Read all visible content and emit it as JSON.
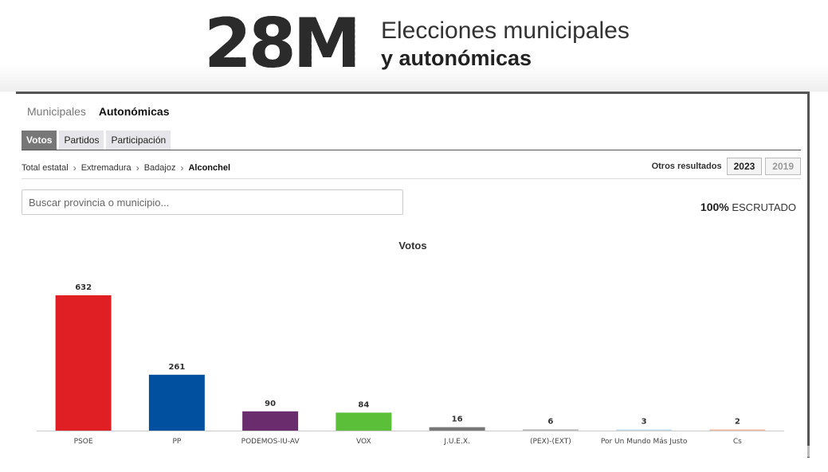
{
  "header": {
    "logo_mark": "28M",
    "logo_line1": "Elecciones municipales",
    "logo_line2": "y autonómicas"
  },
  "top_tabs": [
    {
      "label": "Municipales",
      "active": false
    },
    {
      "label": "Autonómicas",
      "active": true
    }
  ],
  "sub_tabs": [
    {
      "label": "Votos",
      "active": true
    },
    {
      "label": "Partidos",
      "active": false
    },
    {
      "label": "Participación",
      "active": false
    }
  ],
  "breadcrumb": [
    "Total estatal",
    "Extremadura",
    "Badajoz",
    "Alconchel"
  ],
  "other_results": {
    "label": "Otros resultados",
    "years": [
      {
        "label": "2023",
        "active": true
      },
      {
        "label": "2019",
        "active": false
      }
    ]
  },
  "search": {
    "placeholder": "Buscar provincia o municipio..."
  },
  "scrutiny": {
    "percent": "100%",
    "label": "ESCRUTADO"
  },
  "chart_data": {
    "type": "bar",
    "title": "Votos",
    "categories": [
      "PSOE",
      "PP",
      "PODEMOS-IU-AV",
      "VOX",
      "J.U.E.X.",
      "(PEX)-(EXT)",
      "Por Un Mundo Más Justo",
      "Cs"
    ],
    "values": [
      632,
      261,
      90,
      84,
      16,
      6,
      3,
      2
    ],
    "colors": [
      "#e01f25",
      "#0050a0",
      "#6b2c6e",
      "#5bbf3a",
      "#777777",
      "#b9b9b9",
      "#c5dcef",
      "#f5b8a0"
    ],
    "xlabel": "",
    "ylabel": "",
    "grid": false
  },
  "colors": {
    "accent_tab": "#777777",
    "frame_border": "#555555"
  }
}
